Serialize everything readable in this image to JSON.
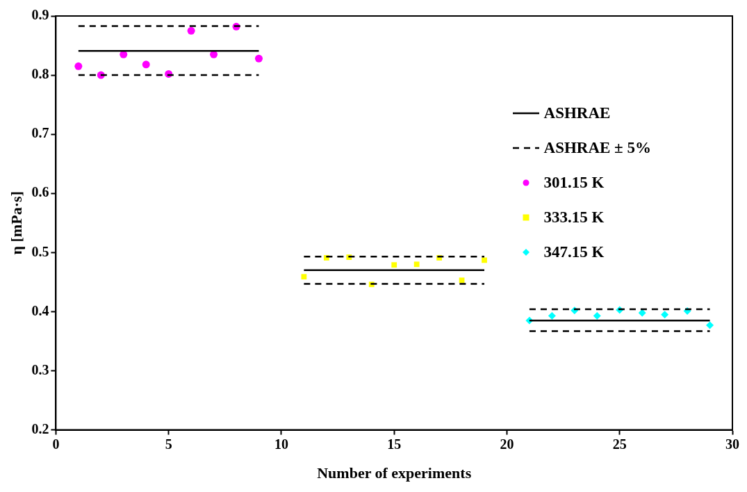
{
  "chart_data": {
    "type": "scatter",
    "xlabel": "Number of experiments",
    "ylabel": "η [mPa·s]",
    "xlim": [
      0,
      30
    ],
    "xticks": [
      0,
      5,
      10,
      15,
      20,
      25,
      30
    ],
    "ylim": [
      0.2,
      0.9
    ],
    "yticks": [
      0.2,
      0.3,
      0.4,
      0.5,
      0.6,
      0.7,
      0.8,
      0.9
    ],
    "grid": false,
    "legend": "right",
    "series": [
      {
        "name": "ASHRAE",
        "type": "line",
        "line_style": "solid",
        "marker": "none",
        "color": "#000000",
        "x": [
          1,
          9
        ],
        "values": [
          0.841,
          0.841
        ]
      },
      {
        "type": "line",
        "line_style": "solid",
        "marker": "none",
        "color": "#000000",
        "x": [
          11,
          19
        ],
        "values": [
          0.47,
          0.47
        ]
      },
      {
        "type": "line",
        "line_style": "solid",
        "marker": "none",
        "color": "#000000",
        "x": [
          21,
          29
        ],
        "values": [
          0.385,
          0.385
        ]
      },
      {
        "name": "ASHRAE ± 5%",
        "type": "line",
        "line_style": "dashed",
        "marker": "none",
        "color": "#000000",
        "x": [
          1,
          9
        ],
        "values": [
          0.883,
          0.883
        ]
      },
      {
        "type": "line",
        "line_style": "dashed",
        "marker": "none",
        "color": "#000000",
        "x": [
          1,
          9
        ],
        "values": [
          0.8,
          0.8
        ]
      },
      {
        "type": "line",
        "line_style": "dashed",
        "marker": "none",
        "color": "#000000",
        "x": [
          11,
          19
        ],
        "values": [
          0.493,
          0.493
        ]
      },
      {
        "type": "line",
        "line_style": "dashed",
        "marker": "none",
        "color": "#000000",
        "x": [
          11,
          19
        ],
        "values": [
          0.447,
          0.447
        ]
      },
      {
        "type": "line",
        "line_style": "dashed",
        "marker": "none",
        "color": "#000000",
        "x": [
          21,
          29
        ],
        "values": [
          0.404,
          0.404
        ]
      },
      {
        "type": "line",
        "line_style": "dashed",
        "marker": "none",
        "color": "#000000",
        "x": [
          21,
          29
        ],
        "values": [
          0.367,
          0.367
        ]
      },
      {
        "name": "301.15 K",
        "type": "scatter",
        "marker": "circle",
        "color": "#ff00ff",
        "x": [
          1,
          2,
          3,
          4,
          5,
          6,
          7,
          8,
          9
        ],
        "values": [
          0.815,
          0.8,
          0.835,
          0.818,
          0.802,
          0.875,
          0.835,
          0.882,
          0.828
        ]
      },
      {
        "name": "333.15 K",
        "type": "scatter",
        "marker": "square",
        "color": "#ffff00",
        "x": [
          11,
          12,
          13,
          14,
          15,
          16,
          17,
          18,
          19
        ],
        "values": [
          0.459,
          0.491,
          0.492,
          0.446,
          0.479,
          0.48,
          0.491,
          0.453,
          0.487
        ]
      },
      {
        "name": "347.15 K",
        "type": "scatter",
        "marker": "diamond",
        "color": "#00ffff",
        "x": [
          21,
          22,
          23,
          24,
          25,
          26,
          27,
          28,
          29
        ],
        "values": [
          0.385,
          0.393,
          0.402,
          0.393,
          0.403,
          0.398,
          0.395,
          0.401,
          0.377
        ]
      }
    ]
  }
}
